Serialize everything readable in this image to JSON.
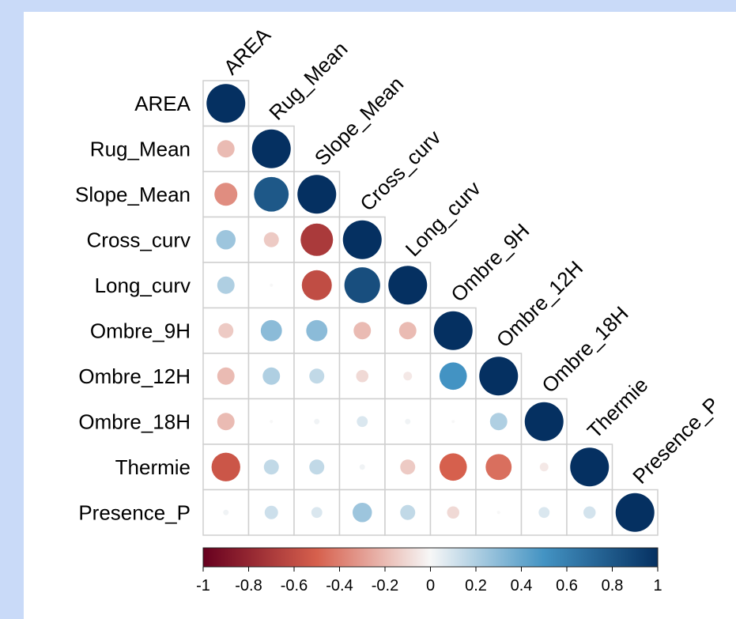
{
  "chart_data": {
    "type": "heatmap",
    "style": "lower-triangle correlation matrix, circles sized and colored by coefficient",
    "variables": [
      "AREA",
      "Rug_Mean",
      "Slope_Mean",
      "Cross_curv",
      "Long_curv",
      "Ombre_9H",
      "Ombre_12H",
      "Ombre_18H",
      "Thermie",
      "Presence_P"
    ],
    "matrix": [
      [
        1.0
      ],
      [
        -0.2,
        1.0
      ],
      [
        -0.35,
        0.8,
        1.0
      ],
      [
        0.25,
        -0.15,
        -0.7,
        1.0
      ],
      [
        0.2,
        0.0,
        -0.6,
        0.85,
        1.0
      ],
      [
        -0.15,
        0.3,
        0.3,
        -0.2,
        -0.2,
        1.0
      ],
      [
        -0.2,
        0.2,
        0.15,
        -0.1,
        -0.05,
        0.5,
        1.0
      ],
      [
        -0.2,
        0.0,
        0.02,
        0.08,
        0.02,
        0.0,
        0.2,
        1.0
      ],
      [
        -0.55,
        0.15,
        0.15,
        0.02,
        -0.15,
        -0.5,
        -0.45,
        -0.05,
        1.0
      ],
      [
        0.02,
        0.12,
        0.08,
        0.25,
        0.15,
        -0.1,
        0.0,
        0.08,
        0.1,
        1.0
      ]
    ],
    "colorbar": {
      "range": [
        -1,
        1
      ],
      "ticks": [
        "-1",
        "-0.8",
        "-0.6",
        "-0.4",
        "-0.2",
        "0",
        "0.2",
        "0.4",
        "0.6",
        "0.8",
        "1"
      ],
      "colors": {
        "neg": "#67001f",
        "negmid": "#d6604d",
        "zero": "#f7f7f7",
        "posmid": "#4393c3",
        "pos": "#053061"
      }
    },
    "title": ""
  }
}
